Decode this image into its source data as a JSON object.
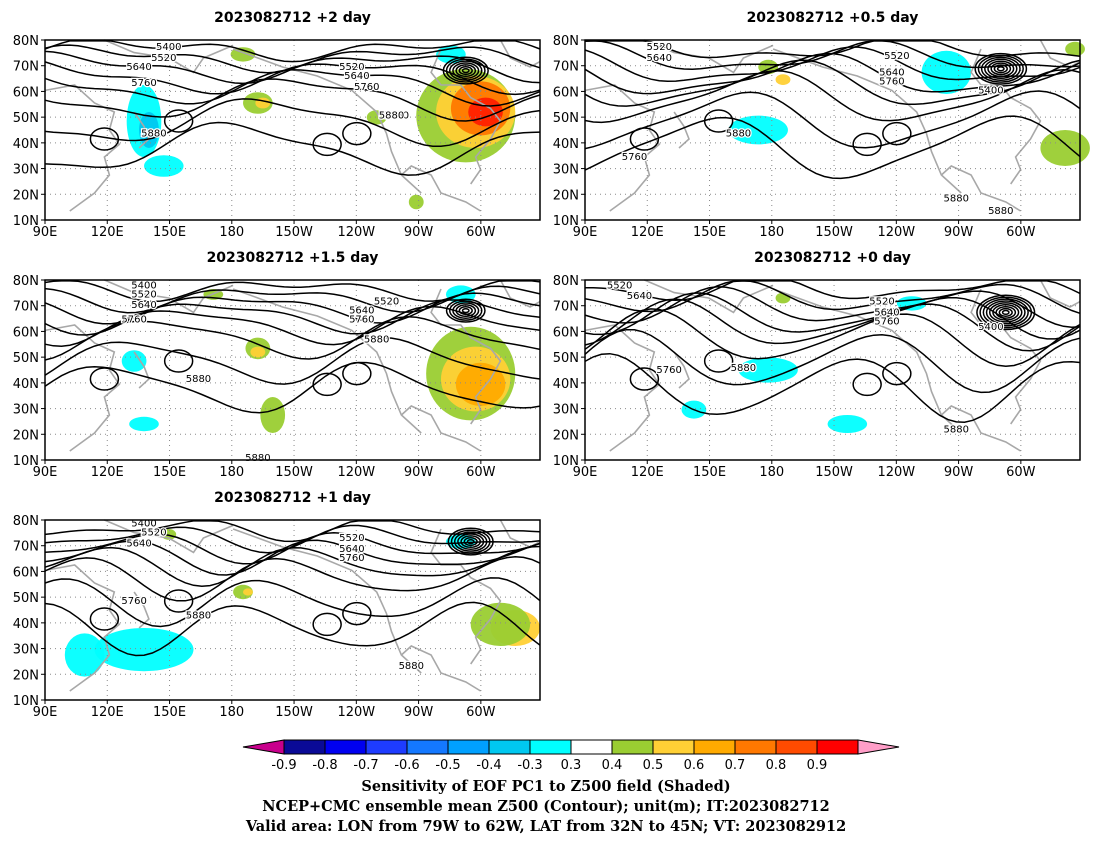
{
  "panels": [
    {
      "title": "2023082712 +2 day",
      "contour_labels": [
        "5400",
        "5520",
        "5640",
        "5760",
        "5880",
        "5520",
        "5640",
        "5760",
        "5880",
        "5880"
      ],
      "shading": "strong positive sensitivity over eastern North America (orange/red)"
    },
    {
      "title": "2023082712 +0.5 day",
      "contour_labels": [
        "5520",
        "5640",
        "5520",
        "5640",
        "5760",
        "5400",
        "5880",
        "5760",
        "5880",
        "5880"
      ],
      "shading": "weak"
    },
    {
      "title": "2023082712 +1.5 day",
      "contour_labels": [
        "5400",
        "5520",
        "5640",
        "5760",
        "5520",
        "5640",
        "5760",
        "5880",
        "5880",
        "5880"
      ],
      "shading": "moderate positive sensitivity over eastern North America"
    },
    {
      "title": "2023082712 +0 day",
      "contour_labels": [
        "5520",
        "5640",
        "5520",
        "5640",
        "5760",
        "5400",
        "5760",
        "5880",
        "5880"
      ],
      "shading": "weak"
    },
    {
      "title": "2023082712 +1 day",
      "contour_labels": [
        "5400",
        "5520",
        "5640",
        "5520",
        "5640",
        "5760",
        "5760",
        "5880",
        "5880"
      ],
      "shading": "negative sensitivity over western Pacific, positive near 60W"
    }
  ],
  "axes": {
    "lat_ticks": [
      "80N",
      "70N",
      "60N",
      "50N",
      "40N",
      "30N",
      "20N",
      "10N"
    ],
    "lon_ticks": [
      "90E",
      "120E",
      "150E",
      "180",
      "150W",
      "120W",
      "90W",
      "60W"
    ]
  },
  "colorbar": {
    "ticks": [
      "-0.9",
      "-0.8",
      "-0.7",
      "-0.6",
      "-0.5",
      "-0.4",
      "-0.3",
      "0.3",
      "0.4",
      "0.5",
      "0.6",
      "0.7",
      "0.8",
      "0.9"
    ],
    "colors": [
      "#c8008c",
      "#0a0a96",
      "#0000f0",
      "#1e3cff",
      "#1478ff",
      "#00a0ff",
      "#00c8f0",
      "#00ffff",
      "#ffffff",
      "#9acd32",
      "#ffd035",
      "#ffaa00",
      "#ff7800",
      "#ff4b00",
      "#ff0000",
      "#ff9ec8"
    ]
  },
  "footer": {
    "line1": "Sensitivity of EOF PC1 to Z500 field (Shaded)",
    "line2": "NCEP+CMC ensemble mean Z500 (Contour); unit(m); IT:2023082712",
    "line3": "Valid area: LON from 79W to 62W, LAT from 32N to 45N; VT: 2023082912"
  }
}
